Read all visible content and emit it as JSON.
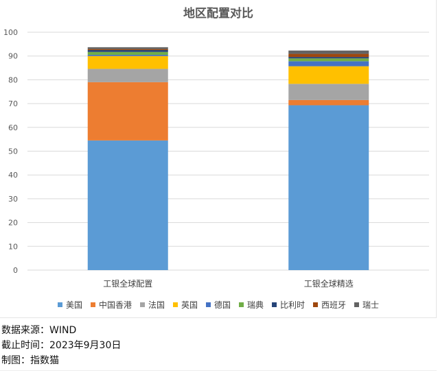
{
  "chart_data": {
    "type": "bar",
    "stacked": true,
    "title": "地区配置对比",
    "xlabel": "",
    "ylabel": "",
    "ylim": [
      0,
      100
    ],
    "yticks": [
      0,
      10,
      20,
      30,
      40,
      50,
      60,
      70,
      80,
      90,
      100
    ],
    "grid": true,
    "legend_position": "bottom",
    "categories": [
      "工银全球配置",
      "工银全球精选"
    ],
    "series": [
      {
        "name": "美国",
        "color": "#5B9BD5",
        "values": [
          54.5,
          69.3
        ]
      },
      {
        "name": "中国香港",
        "color": "#ED7D31",
        "values": [
          24.5,
          2.2
        ]
      },
      {
        "name": "法国",
        "color": "#A5A5A5",
        "values": [
          5.6,
          6.8
        ]
      },
      {
        "name": "英国",
        "color": "#FFC000",
        "values": [
          5.4,
          7.4
        ]
      },
      {
        "name": "德国",
        "color": "#4472C4",
        "values": [
          0.5,
          2.1
        ]
      },
      {
        "name": "瑞典",
        "color": "#70AD47",
        "values": [
          1.2,
          1.2
        ]
      },
      {
        "name": "比利时",
        "color": "#264478",
        "values": [
          0.8,
          0.6
        ]
      },
      {
        "name": "西班牙",
        "color": "#9E480E",
        "values": [
          0.4,
          1.3
        ]
      },
      {
        "name": "瑞士",
        "color": "#636363",
        "values": [
          0.8,
          1.4
        ]
      }
    ]
  },
  "footnotes": {
    "source": "数据来源：WIND",
    "date": "截止时间：2023年9月30日",
    "author": "制图：指数猫"
  }
}
